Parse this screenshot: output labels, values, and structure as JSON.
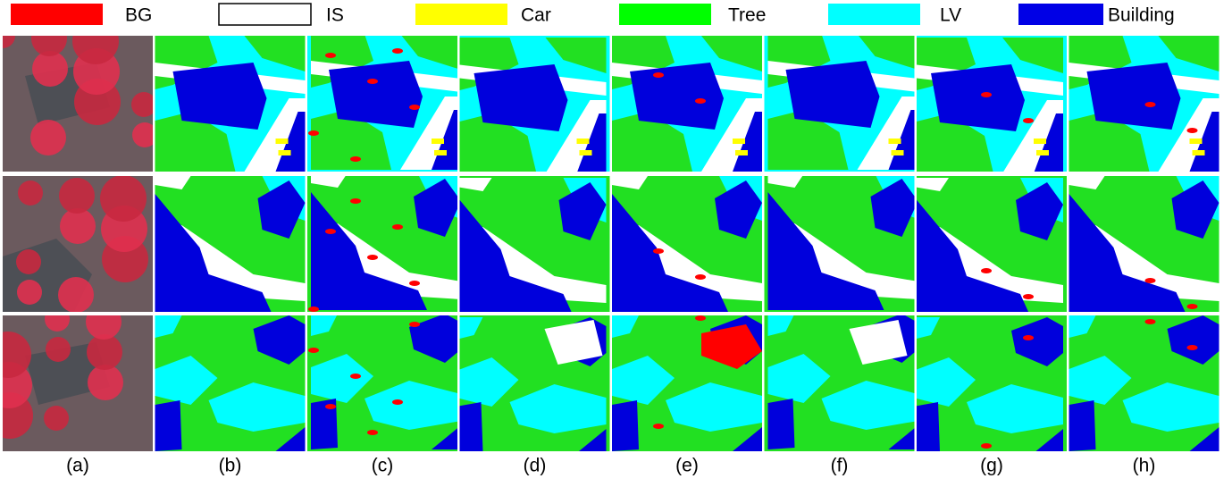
{
  "legend": [
    {
      "label": "BG",
      "color": "#ff0000"
    },
    {
      "label": "IS",
      "color": "#ffffff"
    },
    {
      "label": "Car",
      "color": "#ffff00"
    },
    {
      "label": "Tree",
      "color": "#00ff00"
    },
    {
      "label": "LV",
      "color": "#00ffff"
    },
    {
      "label": "Building",
      "color": "#0000e6"
    }
  ],
  "columns": [
    "(a)",
    "(b)",
    "(c)",
    "(d)",
    "(e)",
    "(f)",
    "(g)",
    "(h)"
  ]
}
